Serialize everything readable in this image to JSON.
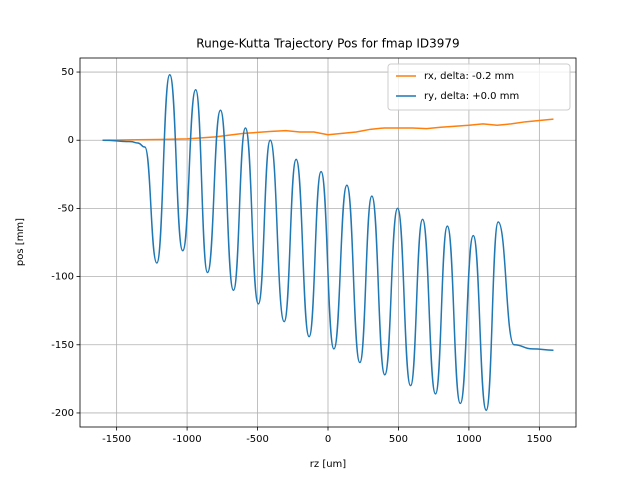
{
  "chart_data": {
    "type": "line",
    "title": "Runge-Kutta Trajectory Pos for fmap ID3979",
    "x_label": "rz [um]",
    "y_label": "pos [mm]",
    "series": [
      {
        "name": "rx, delta: -0.2 mm",
        "color": "#ff7f0e",
        "smooth": false,
        "x": [
          -1600,
          -1200,
          -1000,
          -800,
          -600,
          -400,
          -300,
          -200,
          -100,
          0,
          200,
          300,
          400,
          500,
          600,
          700,
          800,
          1000,
          1100,
          1200,
          1300,
          1400,
          1600
        ],
        "values": [
          0,
          0.5,
          1,
          2.5,
          5,
          6.5,
          7,
          6,
          6,
          4,
          6,
          8,
          9,
          9,
          9,
          8.5,
          9.5,
          11,
          12,
          11,
          12,
          13.5,
          15.5
        ]
      },
      {
        "name": "ry, delta: +0.0 mm",
        "color": "#1f77b4",
        "smooth": true,
        "x": [
          -1600,
          -1400,
          -1350,
          -1300,
          -1215,
          -1123,
          -1031,
          -939,
          -855,
          -763,
          -671,
          -586,
          -494,
          -410,
          -311,
          -226,
          -134,
          -49,
          42,
          134,
          226,
          311,
          403,
          494,
          586,
          671,
          763,
          847,
          939,
          1031,
          1123,
          1208,
          1320,
          1450,
          1600
        ],
        "values": [
          0,
          -1,
          -2,
          -5,
          -90,
          48,
          -81,
          37,
          -97,
          22,
          -110,
          9,
          -120,
          0,
          -133,
          -14,
          -144,
          -23,
          -153,
          -33,
          -163,
          -41,
          -172,
          -50,
          -180,
          -58,
          -186,
          -63,
          -193,
          -70,
          -198,
          -60,
          -150,
          -153,
          -154
        ]
      }
    ],
    "xlim": [
      -1760,
      1760
    ],
    "ylim": [
      -210.3,
      60.3
    ],
    "xticks": [
      -1500,
      -1000,
      -500,
      0,
      500,
      1000,
      1500
    ],
    "yticks": [
      -200,
      -150,
      -100,
      -50,
      0,
      50
    ],
    "grid": true,
    "legend": "upper right"
  }
}
